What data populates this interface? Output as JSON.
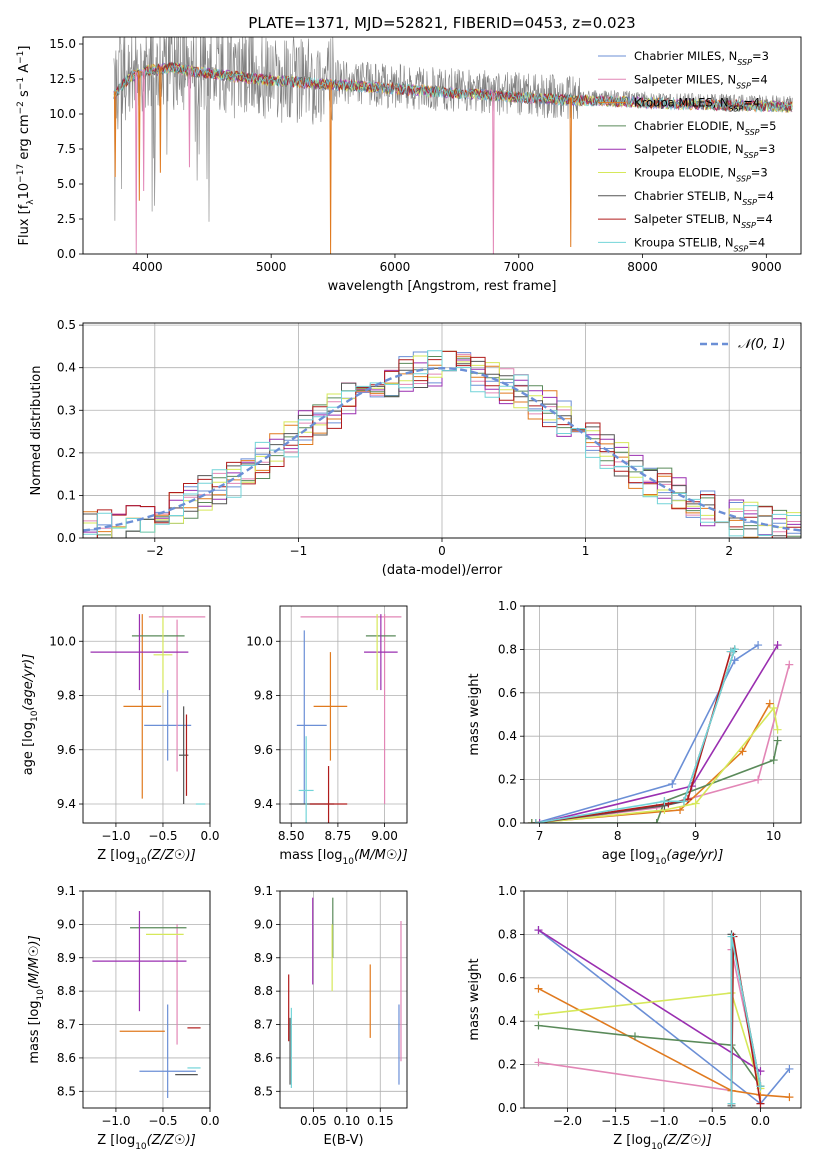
{
  "figure_title": "PLATE=1371, MJD=52821, FIBERID=0453, z=0.023",
  "series": [
    {
      "key": "chab_miles",
      "label": "Chabrier MILES, N",
      "label_sub": "SSP",
      "label_end": "=3",
      "color": "#6b8fd6"
    },
    {
      "key": "salp_miles",
      "label": "Salpeter MILES, N",
      "label_sub": "SSP",
      "label_end": "=4",
      "color": "#e286b6"
    },
    {
      "key": "krou_miles",
      "label": "Kroupa MILES, N",
      "label_sub": "SSP",
      "label_end": "=4",
      "color": "#e07a1f"
    },
    {
      "key": "chab_elodie",
      "label": "Chabrier ELODIE, N",
      "label_sub": "SSP",
      "label_end": "=5",
      "color": "#5a8a5a"
    },
    {
      "key": "salp_elodie",
      "label": "Salpeter ELODIE, N",
      "label_sub": "SSP",
      "label_end": "=3",
      "color": "#9a2fb0"
    },
    {
      "key": "krou_elodie",
      "label": "Kroupa ELODIE, N",
      "label_sub": "SSP",
      "label_end": "=3",
      "color": "#d6e85a"
    },
    {
      "key": "chab_stelib",
      "label": "Chabrier STELIB, N",
      "label_sub": "SSP",
      "label_end": "=4",
      "color": "#555555"
    },
    {
      "key": "salp_stelib",
      "label": "Salpeter STELIB, N",
      "label_sub": "SSP",
      "label_end": "=4",
      "color": "#b01c1c"
    },
    {
      "key": "krou_stelib",
      "label": "Kroupa STELIB, N",
      "label_sub": "SSP",
      "label_end": "=4",
      "color": "#72d4d8"
    }
  ],
  "chart_data": [
    {
      "id": "spectrum",
      "type": "line",
      "xlabel": "wavelength [Angstrom, rest frame]",
      "ylabel_parts": [
        "Flux [f",
        "λ",
        "10",
        "−17",
        " erg cm",
        "−2",
        " s",
        "−1",
        " A",
        "−1",
        "]"
      ],
      "xlim": [
        3480,
        9280
      ],
      "ylim": [
        0,
        15.5
      ],
      "xticks": [
        4000,
        5000,
        6000,
        7000,
        8000,
        9000
      ],
      "yticks": [
        0.0,
        2.5,
        5.0,
        7.5,
        10.0,
        12.5,
        15.0
      ],
      "data_color": "#808080",
      "data_x_range": [
        3730,
        9210
      ],
      "continuum_knots": {
        "x": [
          3730,
          3850,
          4000,
          4200,
          4400,
          4700,
          5000,
          5500,
          6000,
          6500,
          7000,
          7400,
          7800,
          8300,
          8800,
          9210
        ],
        "y": [
          11.5,
          12.8,
          13.3,
          13.5,
          13.2,
          12.9,
          12.6,
          12.3,
          12.0,
          11.7,
          11.4,
          11.2,
          11.1,
          10.9,
          10.8,
          10.7
        ]
      },
      "model_dips": [
        {
          "x": 3740,
          "y": 5.5
        },
        {
          "x": 3910,
          "y": 0.0
        },
        {
          "x": 3935,
          "y": 3.8
        },
        {
          "x": 3970,
          "y": 4.5
        },
        {
          "x": 4105,
          "y": 5.8
        },
        {
          "x": 4340,
          "y": 6.2
        },
        {
          "x": 5480,
          "y": 0.0
        },
        {
          "x": 6795,
          "y": 0.0
        },
        {
          "x": 7420,
          "y": 0.5
        }
      ]
    },
    {
      "id": "residual_hist",
      "type": "bar",
      "xlabel": "(data-model)/error",
      "ylabel": "Normed distribution",
      "xlim": [
        -2.5,
        2.5
      ],
      "ylim": [
        0,
        0.505
      ],
      "xticks": [
        -2,
        -1,
        0,
        1,
        2
      ],
      "yticks": [
        0.0,
        0.1,
        0.2,
        0.3,
        0.4,
        0.5
      ],
      "bin_width": 0.1,
      "legend": {
        "label": "𝒩(0, 1)",
        "color": "#6b8fd6",
        "style": "dashed"
      },
      "normal": {
        "mu": 0,
        "sigma": 1
      }
    },
    {
      "id": "age_vs_Z",
      "type": "scatter",
      "xlabel": "Z [log10(Z/Z☉)]",
      "ylabel": "age  [log10(age/yr)]",
      "xlim": [
        -1.35,
        0.0
      ],
      "ylim": [
        9.33,
        10.13
      ],
      "xticks": [
        -1.0,
        -0.5,
        0.0
      ],
      "yticks": [
        9.4,
        9.6,
        9.8,
        10.0
      ],
      "points": [
        {
          "s": "chab_miles",
          "x": -0.45,
          "xe": 0.25,
          "y": 9.69,
          "ye": 0.13
        },
        {
          "s": "salp_miles",
          "x": -0.35,
          "xe": 0.3,
          "y": 10.09,
          "ye": 0.0
        },
        {
          "s": "salp_miles2",
          "x": -0.35,
          "xe": 0.0,
          "y": 9.8,
          "ye": 0.28
        },
        {
          "s": "krou_miles",
          "x": -0.72,
          "xe": 0.2,
          "y": 9.76,
          "ye": 0.34
        },
        {
          "s": "chab_elodie",
          "x": -0.55,
          "xe": 0.28,
          "y": 10.02,
          "ye": 0.0
        },
        {
          "s": "salp_elodie",
          "x": -0.75,
          "xe": 0.52,
          "y": 9.96,
          "ye": 0.14
        },
        {
          "s": "krou_elodie",
          "x": -0.5,
          "xe": 0.1,
          "y": 9.95,
          "ye": 0.14
        },
        {
          "s": "chab_stelib",
          "x": -0.28,
          "xe": 0.05,
          "y": 9.58,
          "ye": 0.18
        },
        {
          "s": "salp_stelib",
          "x": -0.25,
          "xe": 0.0,
          "y": 9.58,
          "ye": 0.15
        },
        {
          "s": "krou_stelib",
          "x": -0.1,
          "xe": 0.05,
          "y": 9.4,
          "ye": 0.0
        }
      ]
    },
    {
      "id": "age_vs_mass",
      "type": "scatter",
      "xlabel": "mass [log10(M/M☉)]",
      "xlim": [
        8.44,
        9.12
      ],
      "ylim": [
        9.33,
        10.13
      ],
      "xticks": [
        8.5,
        8.75,
        9.0
      ],
      "yticks": [
        9.4,
        9.6,
        9.8,
        10.0
      ],
      "points": [
        {
          "s": "chab_miles",
          "x": 8.57,
          "xe": 0.0,
          "y": 9.72,
          "ye": 0.32
        },
        {
          "s": "chab_miles2",
          "x": 8.61,
          "xe": 0.08,
          "y": 9.69,
          "ye": 0.0
        },
        {
          "s": "salp_miles",
          "x": 8.82,
          "xe": 0.27,
          "y": 10.09,
          "ye": 0.0
        },
        {
          "s": "salp_miles2",
          "x": 9.0,
          "xe": 0.0,
          "y": 9.75,
          "ye": 0.35
        },
        {
          "s": "krou_miles",
          "x": 8.71,
          "xe": 0.09,
          "y": 9.76,
          "ye": 0.2
        },
        {
          "s": "chab_elodie",
          "x": 8.98,
          "xe": 0.08,
          "y": 10.02,
          "ye": 0.0
        },
        {
          "s": "salp_elodie",
          "x": 8.98,
          "xe": 0.09,
          "y": 9.96,
          "ye": 0.14
        },
        {
          "s": "krou_elodie",
          "x": 8.96,
          "xe": 0.0,
          "y": 9.96,
          "ye": 0.14
        },
        {
          "s": "chab_stelib",
          "x": 8.61,
          "xe": 0.12,
          "y": 9.4,
          "ye": 0.0
        },
        {
          "s": "salp_stelib",
          "x": 8.7,
          "xe": 0.1,
          "y": 9.4,
          "ye": 0.14
        },
        {
          "s": "krou_stelib",
          "x": 8.58,
          "xe": 0.04,
          "y": 9.45,
          "ye": 0.2
        }
      ]
    },
    {
      "id": "weight_vs_age",
      "type": "line",
      "xlabel": "age  [log10(age/yr)]",
      "ylabel": "mass weight",
      "xlim": [
        6.8,
        10.35
      ],
      "ylim": [
        0,
        1.0
      ],
      "xticks": [
        7,
        8,
        9,
        10
      ],
      "yticks": [
        0.0,
        0.2,
        0.4,
        0.6,
        0.8,
        1.0
      ],
      "series": [
        {
          "s": "chab_miles",
          "x": [
            6.95,
            8.7,
            9.5,
            9.8
          ],
          "y": [
            0.0,
            0.18,
            0.75,
            0.82
          ]
        },
        {
          "s": "salp_miles",
          "x": [
            6.95,
            8.5,
            9.8,
            10.2
          ],
          "y": [
            0.0,
            0.07,
            0.2,
            0.73
          ]
        },
        {
          "s": "krou_miles",
          "x": [
            6.9,
            8.8,
            9.6,
            9.95
          ],
          "y": [
            0.0,
            0.06,
            0.33,
            0.55
          ]
        },
        {
          "s": "chab_elodie",
          "x": [
            6.9,
            8.5,
            8.6,
            10.0,
            10.05
          ],
          "y": [
            0.0,
            0.0,
            0.1,
            0.29,
            0.38
          ]
        },
        {
          "s": "salp_elodie",
          "x": [
            7.0,
            8.95,
            10.05
          ],
          "y": [
            0.0,
            0.17,
            0.82
          ]
        },
        {
          "s": "krou_elodie",
          "x": [
            6.95,
            8.6,
            9.0,
            10.0,
            10.05
          ],
          "y": [
            0.0,
            0.06,
            0.09,
            0.53,
            0.43
          ]
        },
        {
          "s": "chab_stelib",
          "x": [
            6.95,
            8.6,
            8.85,
            9.5,
            9.48
          ],
          "y": [
            0.0,
            0.08,
            0.1,
            0.8,
            0.79
          ]
        },
        {
          "s": "salp_stelib",
          "x": [
            6.95,
            8.65,
            8.9,
            9.45
          ],
          "y": [
            0.0,
            0.09,
            0.11,
            0.79
          ]
        },
        {
          "s": "krou_stelib",
          "x": [
            6.95,
            8.6,
            8.85,
            9.5,
            9.45
          ],
          "y": [
            0.0,
            0.1,
            0.1,
            0.8,
            0.79
          ]
        }
      ]
    },
    {
      "id": "mass_vs_Z",
      "type": "scatter",
      "xlabel": "Z [log10(Z/Z☉)]",
      "ylabel": "mass [log10(M/M☉)]",
      "xlim": [
        -1.35,
        0.0
      ],
      "ylim": [
        8.45,
        9.1
      ],
      "xticks": [
        -1.0,
        -0.5,
        0.0
      ],
      "yticks": [
        8.5,
        8.6,
        8.7,
        8.8,
        8.9,
        9.0,
        9.1
      ],
      "points": [
        {
          "s": "chab_miles",
          "x": -0.45,
          "xe": 0.3,
          "y": 8.56,
          "ye": 0.0
        },
        {
          "s": "chab_miles2",
          "x": -0.45,
          "xe": 0.0,
          "y": 8.62,
          "ye": 0.14
        },
        {
          "s": "salp_miles",
          "x": -0.35,
          "xe": 0.0,
          "y": 8.82,
          "ye": 0.18
        },
        {
          "s": "krou_miles",
          "x": -0.72,
          "xe": 0.24,
          "y": 8.68,
          "ye": 0.0
        },
        {
          "s": "chab_elodie",
          "x": -0.55,
          "xe": 0.3,
          "y": 8.99,
          "ye": 0.0
        },
        {
          "s": "salp_elodie",
          "x": -0.75,
          "xe": 0.5,
          "y": 8.89,
          "ye": 0.15
        },
        {
          "s": "krou_elodie",
          "x": -0.48,
          "xe": 0.2,
          "y": 8.97,
          "ye": 0.0
        },
        {
          "s": "chab_stelib",
          "x": -0.25,
          "xe": 0.12,
          "y": 8.55,
          "ye": 0.0
        },
        {
          "s": "salp_stelib",
          "x": -0.17,
          "xe": 0.07,
          "y": 8.69,
          "ye": 0.0
        },
        {
          "s": "krou_stelib",
          "x": -0.17,
          "xe": 0.07,
          "y": 8.57,
          "ye": 0.0
        }
      ]
    },
    {
      "id": "mass_vs_ebv",
      "type": "scatter",
      "xlabel": "E(B-V)",
      "xlim": [
        0.0,
        0.19
      ],
      "ylim": [
        8.45,
        9.1
      ],
      "xticks": [
        0.05,
        0.1,
        0.15
      ],
      "yticks": [
        8.5,
        8.6,
        8.7,
        8.8,
        8.9,
        9.0,
        9.1
      ],
      "points": [
        {
          "s": "chab_miles",
          "x": 0.178,
          "xe": 0.0,
          "y": 8.64,
          "ye": 0.12
        },
        {
          "s": "salp_miles",
          "x": 0.181,
          "xe": 0.0,
          "y": 8.8,
          "ye": 0.21
        },
        {
          "s": "krou_miles",
          "x": 0.135,
          "xe": 0.0,
          "y": 8.77,
          "ye": 0.11
        },
        {
          "s": "chab_elodie",
          "x": 0.079,
          "xe": 0.0,
          "y": 8.99,
          "ye": 0.09
        },
        {
          "s": "salp_elodie",
          "x": 0.049,
          "xe": 0.0,
          "y": 8.95,
          "ye": 0.13
        },
        {
          "s": "krou_elodie",
          "x": 0.078,
          "xe": 0.0,
          "y": 8.9,
          "ye": 0.1
        },
        {
          "s": "chab_stelib",
          "x": 0.015,
          "xe": 0.0,
          "y": 8.62,
          "ye": 0.1
        },
        {
          "s": "salp_stelib",
          "x": 0.013,
          "xe": 0.0,
          "y": 8.75,
          "ye": 0.1
        },
        {
          "s": "krou_stelib",
          "x": 0.017,
          "xe": 0.0,
          "y": 8.63,
          "ye": 0.12
        }
      ]
    },
    {
      "id": "weight_vs_Z",
      "type": "line",
      "xlabel": "Z [log10(Z/Z☉)]",
      "ylabel": "mass weight",
      "xlim": [
        -2.45,
        0.42
      ],
      "ylim": [
        0,
        1.0
      ],
      "xticks": [
        -2.0,
        -1.5,
        -1.0,
        -0.5,
        0.0
      ],
      "yticks": [
        0.0,
        0.2,
        0.4,
        0.6,
        0.8,
        1.0
      ],
      "series": [
        {
          "s": "chab_miles",
          "x": [
            -2.3,
            0.0,
            0.3
          ],
          "y": [
            0.82,
            0.02,
            0.18
          ]
        },
        {
          "s": "salp_miles",
          "x": [
            -2.3,
            -0.3,
            -0.3,
            0.0
          ],
          "y": [
            0.21,
            0.08,
            0.73,
            0.1
          ]
        },
        {
          "s": "krou_miles",
          "x": [
            -2.3,
            -0.3,
            0.0,
            0.3
          ],
          "y": [
            0.55,
            0.08,
            0.06,
            0.05
          ]
        },
        {
          "s": "chab_elodie",
          "x": [
            -2.3,
            -1.3,
            -0.3,
            0.0
          ],
          "y": [
            0.38,
            0.33,
            0.29,
            0.1
          ]
        },
        {
          "s": "salp_elodie",
          "x": [
            -2.3,
            0.0
          ],
          "y": [
            0.82,
            0.17
          ]
        },
        {
          "s": "krou_elodie",
          "x": [
            -2.3,
            -0.3,
            0.0
          ],
          "y": [
            0.43,
            0.53,
            0.09
          ]
        },
        {
          "s": "chab_stelib",
          "x": [
            -0.3,
            -0.3,
            0.0
          ],
          "y": [
            0.01,
            0.8,
            0.1
          ]
        },
        {
          "s": "salp_stelib",
          "x": [
            -0.3,
            -0.28,
            0.0
          ],
          "y": [
            0.02,
            0.79,
            0.02
          ]
        },
        {
          "s": "krou_stelib",
          "x": [
            -0.3,
            -0.3,
            0.0
          ],
          "y": [
            0.02,
            0.79,
            0.1
          ]
        }
      ]
    }
  ]
}
